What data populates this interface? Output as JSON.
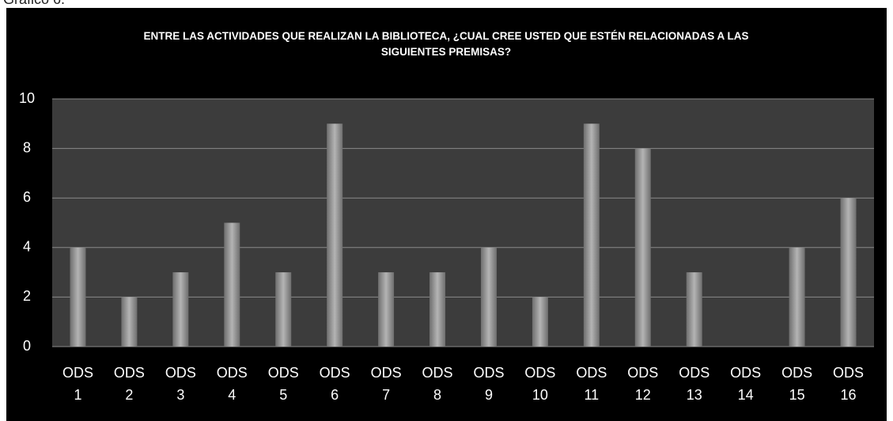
{
  "caption": "Gráfico 6.",
  "chart_data": {
    "type": "bar",
    "title": "ENTRE LAS ACTIVIDADES QUE REALIZAN LA BIBLIOTECA, ¿CUAL CREE USTED QUE ESTÉN RELACIONADAS A LAS SIGUIENTES PREMISAS?",
    "categories": [
      "ODS 1",
      "ODS 2",
      "ODS 3",
      "ODS 4",
      "ODS 5",
      "ODS 6",
      "ODS 7",
      "ODS 8",
      "ODS 9",
      "ODS 10",
      "ODS 11",
      "ODS 12",
      "ODS 13",
      "ODS 14",
      "ODS 15",
      "ODS 16"
    ],
    "values": [
      4,
      2,
      3,
      5,
      3,
      9,
      3,
      3,
      4,
      2,
      9,
      8,
      3,
      0,
      4,
      6
    ],
    "color": "#9a9a9a",
    "ylim": [
      0,
      10
    ],
    "yticks": [
      0,
      2,
      4,
      6,
      8,
      10
    ],
    "grid": true
  }
}
